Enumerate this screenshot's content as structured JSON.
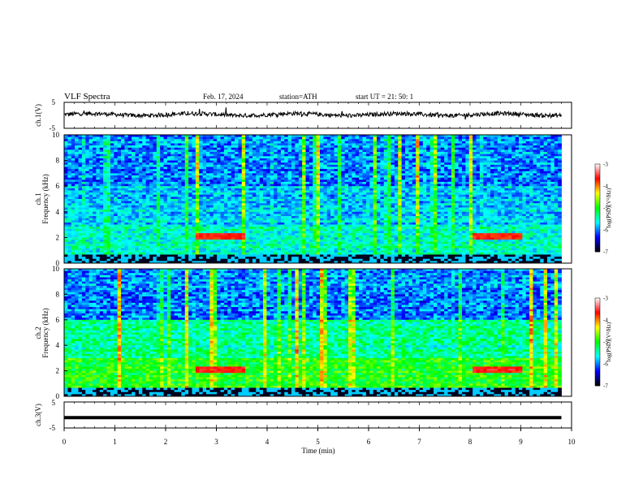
{
  "header": {
    "title": "VLF  Spectra",
    "date": "Feb. 17, 2024",
    "station": "station=ATH",
    "start": "start  UT  =    21: 50: 1"
  },
  "chart_data": [
    {
      "type": "line",
      "panel": "ch1-waveform",
      "ylabel": "ch.1(V)",
      "ylim": [
        -5,
        5
      ],
      "yticks": [
        "5",
        "-5"
      ],
      "xlim": [
        0,
        10
      ],
      "baseline": 0.3,
      "noise_amplitude": 0.8
    },
    {
      "type": "heatmap",
      "panel": "ch1-spectrogram",
      "ylabel_lines": [
        "ch.1",
        "Frequency  (kHz)"
      ],
      "ylim": [
        0,
        10
      ],
      "yticks": [
        "0",
        "2",
        "4",
        "6",
        "8",
        "10"
      ],
      "xlim": [
        0,
        9.8
      ],
      "enhanced_segments": [
        [
          2.6,
          3.55
        ],
        [
          8.05,
          9.0
        ]
      ],
      "colorbar": {
        "label": "log(PSD)(V²/Hz)",
        "range": [
          -7,
          -3
        ],
        "ticks": [
          "-3",
          "-4",
          "-5",
          "-6",
          "-7"
        ],
        "colors": [
          "#000000",
          "#0000ff",
          "#00ffff",
          "#00ff00",
          "#ffff00",
          "#ff0000",
          "#ffffff"
        ]
      }
    },
    {
      "type": "heatmap",
      "panel": "ch2-spectrogram",
      "ylabel_lines": [
        "ch.2",
        "Frequency  (kHz)"
      ],
      "ylim": [
        0,
        10
      ],
      "yticks": [
        "0",
        "2",
        "4",
        "6",
        "8",
        "10"
      ],
      "xlim": [
        0,
        9.8
      ],
      "enhanced_segments": [
        [
          2.6,
          3.55
        ],
        [
          8.05,
          9.0
        ]
      ],
      "colorbar": {
        "label": "log(PSD)(V²/Hz)",
        "range": [
          -7,
          -3
        ],
        "ticks": [
          "-3",
          "-4",
          "-5",
          "-6",
          "-7"
        ],
        "colors": [
          "#000000",
          "#0000ff",
          "#00ffff",
          "#00ff00",
          "#ffff00",
          "#ff0000",
          "#ffffff"
        ]
      }
    },
    {
      "type": "line",
      "panel": "ch3-waveform",
      "ylabel": "ch.3(V)",
      "ylim": [
        -5,
        5
      ],
      "yticks": [
        "5",
        "-5"
      ],
      "xlim": [
        0,
        10
      ],
      "baseline": -1.0,
      "noise_amplitude": 0.1,
      "xlabel": "Time  (min)",
      "xticks": [
        "0",
        "1",
        "2",
        "3",
        "4",
        "5",
        "6",
        "7",
        "8",
        "9",
        "10"
      ]
    }
  ]
}
